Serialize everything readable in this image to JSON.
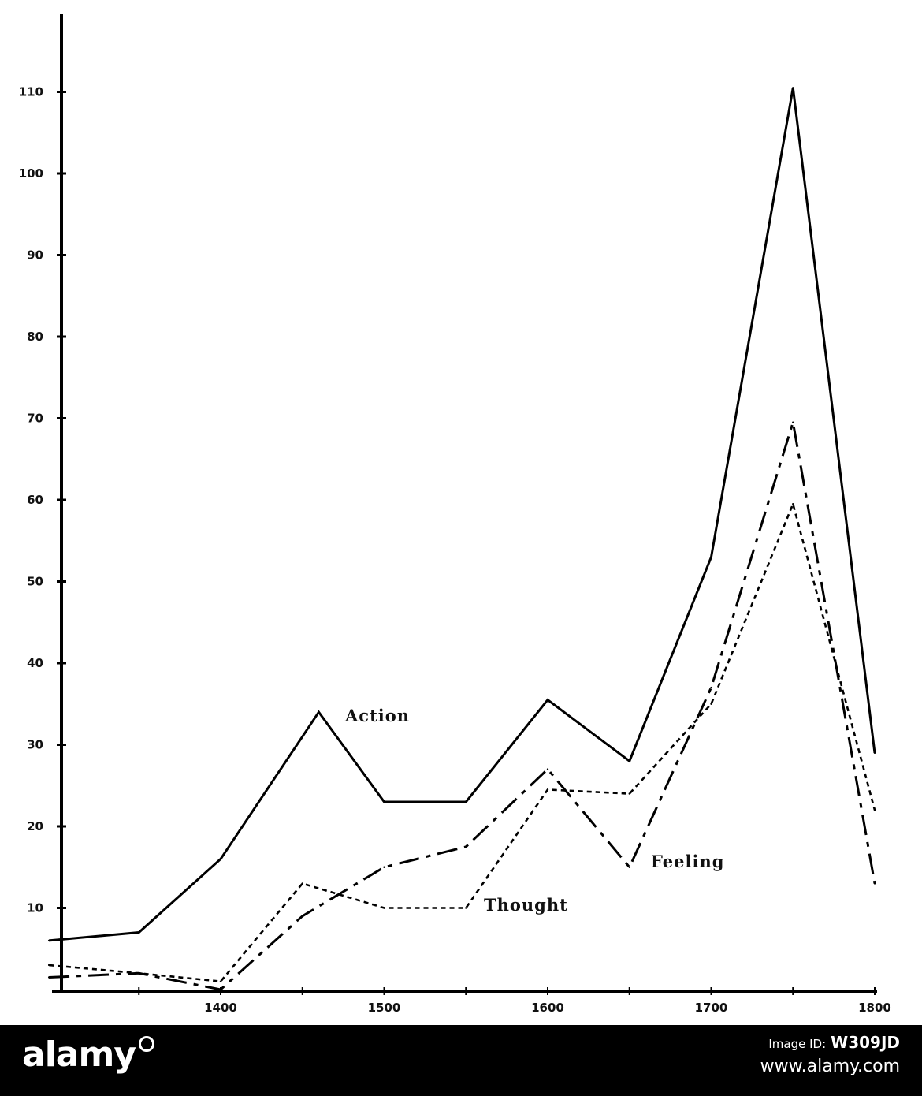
{
  "chart_data": {
    "type": "line",
    "x": [
      1300,
      1350,
      1400,
      1450,
      1500,
      1550,
      1600,
      1650,
      1700,
      1750,
      1800
    ],
    "xticks": [
      1400,
      1500,
      1600,
      1700,
      1800
    ],
    "xtick_labels": [
      "1400",
      "1500",
      "1600",
      "1700",
      "1800"
    ],
    "yticks": [
      10,
      20,
      30,
      40,
      50,
      60,
      70,
      80,
      90,
      100,
      110
    ],
    "ytick_labels": [
      "10",
      "20",
      "30",
      "40",
      "50",
      "60",
      "70",
      "80",
      "90",
      "100",
      "110"
    ],
    "xlim": [
      1300,
      1800
    ],
    "ylim": [
      0,
      120
    ],
    "grid": false,
    "series": [
      {
        "name": "Action",
        "style": "solid",
        "x": [
          1295,
          1350,
          1400,
          1460,
          1500,
          1550,
          1600,
          1650,
          1700,
          1750,
          1800
        ],
        "values": [
          6,
          7,
          16,
          34,
          23,
          23,
          35.5,
          28,
          53,
          110.5,
          29
        ]
      },
      {
        "name": "Feeling",
        "style": "dashed",
        "x": [
          1295,
          1350,
          1400,
          1450,
          1500,
          1550,
          1600,
          1650,
          1700,
          1750,
          1800
        ],
        "values": [
          1.5,
          2,
          0,
          9,
          15,
          17.5,
          27,
          15,
          37,
          69.5,
          13
        ]
      },
      {
        "name": "Thought",
        "style": "dotted",
        "x": [
          1295,
          1350,
          1400,
          1450,
          1500,
          1550,
          1600,
          1650,
          1700,
          1750,
          1800
        ],
        "values": [
          3,
          2,
          1,
          13,
          10,
          10,
          24.5,
          24,
          35,
          59.5,
          22
        ]
      }
    ],
    "title": "",
    "xlabel": "",
    "ylabel": ""
  },
  "watermark": {
    "brand": "alamy",
    "image_id_label": "Image ID:",
    "image_id": "W309JD",
    "url": "www.alamy.com"
  }
}
